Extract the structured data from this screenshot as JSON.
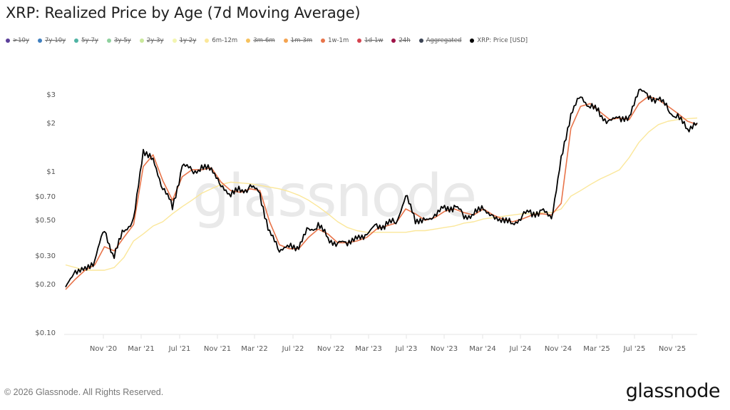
{
  "header": {
    "title": "XRP: Realized Price by Age (7d Moving Average)"
  },
  "legend": [
    {
      "label": ">10y",
      "color": "#5b3f9a",
      "active": false
    },
    {
      "label": "7y-10y",
      "color": "#3f7fbf",
      "active": false
    },
    {
      "label": "5y-7y",
      "color": "#4fb3a3",
      "active": false
    },
    {
      "label": "3y-5y",
      "color": "#8fd19e",
      "active": false
    },
    {
      "label": "2y-3y",
      "color": "#c9e89b",
      "active": false
    },
    {
      "label": "1y-2y",
      "color": "#f3f5b0",
      "active": false
    },
    {
      "label": "6m-12m",
      "color": "#fbe79a",
      "active": true
    },
    {
      "label": "3m-6m",
      "color": "#f6c25e",
      "active": false
    },
    {
      "label": "1m-3m",
      "color": "#f4a350",
      "active": false
    },
    {
      "label": "1w-1m",
      "color": "#e8744a",
      "active": true
    },
    {
      "label": "1d-1w",
      "color": "#d6434f",
      "active": false
    },
    {
      "label": "24h",
      "color": "#9e1347",
      "active": false
    },
    {
      "label": "Aggregated",
      "color": "#3c4454",
      "active": false
    },
    {
      "label": "XRP: Price [USD]",
      "color": "#000000",
      "active": true
    }
  ],
  "watermark": "glassnode",
  "footer": {
    "copyright": "© 2026 Glassnode. All Rights Reserved.",
    "logo": "glassnode"
  },
  "chart_data": {
    "type": "line",
    "title": "XRP: Realized Price by Age (7d Moving Average)",
    "xlabel": "",
    "ylabel": "",
    "yscale": "log",
    "ylim": [
      0.1,
      3.6
    ],
    "grid": false,
    "legend_position": "top",
    "y_ticks": [
      "$0.10",
      "$0.20",
      "$0.30",
      "$0.50",
      "$0.70",
      "$1",
      "$2",
      "$3"
    ],
    "x_ticks": [
      "Nov '20",
      "Mar '21",
      "Jul '21",
      "Nov '21",
      "Mar '22",
      "Jul '22",
      "Nov '22",
      "Mar '23",
      "Jul '23",
      "Nov '23",
      "Mar '24",
      "Jul '24",
      "Nov '24",
      "Mar '25",
      "Jul '25",
      "Nov '25"
    ],
    "x": [
      "Aug '20",
      "Sep '20",
      "Oct '20",
      "Nov '20",
      "Dec '20",
      "Jan '21",
      "Feb '21",
      "Mar '21",
      "Apr '21",
      "May '21",
      "Jun '21",
      "Jul '21",
      "Aug '21",
      "Sep '21",
      "Oct '21",
      "Nov '21",
      "Dec '21",
      "Jan '22",
      "Feb '22",
      "Mar '22",
      "Apr '22",
      "May '22",
      "Jun '22",
      "Jul '22",
      "Aug '22",
      "Sep '22",
      "Oct '22",
      "Nov '22",
      "Dec '22",
      "Jan '23",
      "Feb '23",
      "Mar '23",
      "Apr '23",
      "May '23",
      "Jun '23",
      "Jul '23",
      "Aug '23",
      "Sep '23",
      "Oct '23",
      "Nov '23",
      "Dec '23",
      "Jan '24",
      "Feb '24",
      "Mar '24",
      "Apr '24",
      "May '24",
      "Jun '24",
      "Jul '24",
      "Aug '24",
      "Sep '24",
      "Oct '24",
      "Nov '24",
      "Dec '24",
      "Jan '25",
      "Feb '25",
      "Mar '25",
      "Apr '25",
      "May '25",
      "Jun '25",
      "Jul '25",
      "Aug '25",
      "Sep '25",
      "Oct '25",
      "Nov '25",
      "Dec '25",
      "Jan '26"
    ],
    "series": [
      {
        "name": "XRP: Price [USD]",
        "color": "#000000",
        "values": [
          0.19,
          0.25,
          0.25,
          0.29,
          0.45,
          0.3,
          0.45,
          0.5,
          1.4,
          1.2,
          0.82,
          0.62,
          1.1,
          1.05,
          1.05,
          1.1,
          0.82,
          0.75,
          0.78,
          0.82,
          0.75,
          0.42,
          0.34,
          0.35,
          0.35,
          0.45,
          0.47,
          0.4,
          0.36,
          0.38,
          0.39,
          0.42,
          0.47,
          0.48,
          0.5,
          0.72,
          0.52,
          0.5,
          0.55,
          0.61,
          0.62,
          0.55,
          0.55,
          0.62,
          0.52,
          0.52,
          0.48,
          0.55,
          0.57,
          0.58,
          0.53,
          1.2,
          2.35,
          3.0,
          2.6,
          2.35,
          2.05,
          2.25,
          2.15,
          3.4,
          2.95,
          2.9,
          2.5,
          2.2,
          1.9,
          2.05
        ]
      },
      {
        "name": "1w-1m",
        "color": "#e8744a",
        "values": [
          0.19,
          0.22,
          0.25,
          0.27,
          0.35,
          0.33,
          0.4,
          0.48,
          1.1,
          1.3,
          0.9,
          0.68,
          0.95,
          1.05,
          1.05,
          1.08,
          0.88,
          0.78,
          0.76,
          0.8,
          0.78,
          0.5,
          0.36,
          0.34,
          0.34,
          0.4,
          0.45,
          0.42,
          0.37,
          0.37,
          0.38,
          0.4,
          0.45,
          0.47,
          0.49,
          0.6,
          0.56,
          0.51,
          0.53,
          0.58,
          0.6,
          0.57,
          0.55,
          0.6,
          0.55,
          0.52,
          0.5,
          0.52,
          0.55,
          0.56,
          0.55,
          0.65,
          1.9,
          2.6,
          2.7,
          2.4,
          2.15,
          2.2,
          2.15,
          2.7,
          3.0,
          2.85,
          2.6,
          2.35,
          2.1,
          2.0
        ]
      },
      {
        "name": "6m-12m",
        "color": "#fbe79a",
        "values": [
          0.27,
          0.26,
          0.25,
          0.25,
          0.25,
          0.26,
          0.3,
          0.38,
          0.42,
          0.47,
          0.5,
          0.56,
          0.62,
          0.68,
          0.75,
          0.8,
          0.85,
          0.88,
          0.87,
          0.86,
          0.84,
          0.82,
          0.8,
          0.77,
          0.73,
          0.68,
          0.62,
          0.56,
          0.5,
          0.46,
          0.44,
          0.43,
          0.43,
          0.43,
          0.43,
          0.43,
          0.44,
          0.44,
          0.45,
          0.46,
          0.47,
          0.49,
          0.5,
          0.52,
          0.53,
          0.54,
          0.55,
          0.56,
          0.56,
          0.57,
          0.57,
          0.6,
          0.72,
          0.78,
          0.85,
          0.92,
          0.98,
          1.05,
          1.25,
          1.55,
          1.8,
          2.0,
          2.1,
          2.15,
          2.18,
          2.2
        ]
      }
    ]
  }
}
